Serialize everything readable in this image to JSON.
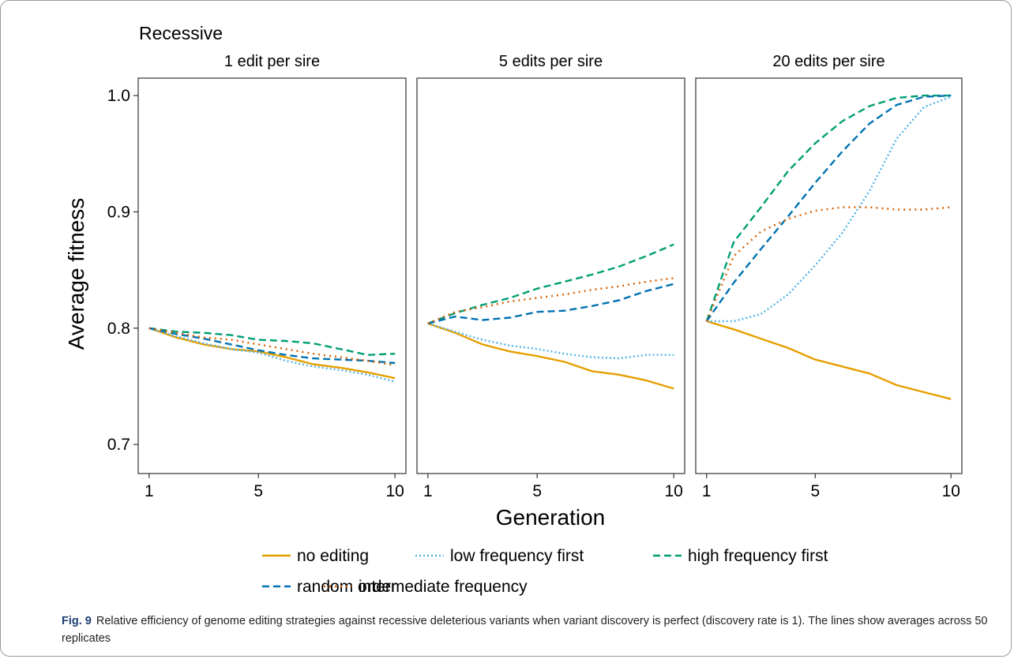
{
  "figure_label": "Fig. 9",
  "caption_text": "Relative efficiency of genome editing strategies against recessive deleterious variants when variant discovery is perfect (discovery rate is 1). The lines show averages across 50 replicates",
  "chart_data": {
    "type": "line",
    "title": "Recessive",
    "xlabel": "Generation",
    "ylabel": "Average fitness",
    "xlim": [
      0.6,
      10.4
    ],
    "ylim": [
      0.675,
      1.015
    ],
    "x_ticks": [
      1,
      5,
      10
    ],
    "y_ticks": [
      0.7,
      0.8,
      0.9,
      1.0
    ],
    "y_tick_labels": [
      "0.7",
      "0.8",
      "0.9",
      "1.0"
    ],
    "grid": false,
    "legend_position": "bottom",
    "colors": {
      "no editing": "#E69F00",
      "low frequency first": "#56B4E9",
      "high frequency first": "#009E73",
      "random order": "#0072B2",
      "intermediate frequency": "#D55E00"
    },
    "legend": [
      "no editing",
      "low frequency first",
      "high frequency first",
      "random order",
      "intermediate frequency"
    ],
    "x": [
      1,
      2,
      3,
      4,
      5,
      6,
      7,
      8,
      9,
      10
    ],
    "panels": [
      {
        "title": "1 edit per sire",
        "series": [
          {
            "name": "no editing",
            "values": [
              0.8,
              0.792,
              0.786,
              0.782,
              0.78,
              0.775,
              0.769,
              0.766,
              0.762,
              0.757
            ]
          },
          {
            "name": "low frequency first",
            "values": [
              0.8,
              0.793,
              0.787,
              0.782,
              0.779,
              0.772,
              0.767,
              0.764,
              0.76,
              0.754
            ]
          },
          {
            "name": "high frequency first",
            "values": [
              0.8,
              0.797,
              0.796,
              0.794,
              0.79,
              0.789,
              0.787,
              0.782,
              0.777,
              0.778
            ]
          },
          {
            "name": "random order",
            "values": [
              0.8,
              0.795,
              0.791,
              0.786,
              0.781,
              0.777,
              0.774,
              0.773,
              0.772,
              0.77
            ]
          },
          {
            "name": "intermediate frequency",
            "values": [
              0.8,
              0.796,
              0.792,
              0.79,
              0.786,
              0.782,
              0.778,
              0.775,
              0.772,
              0.768
            ]
          }
        ]
      },
      {
        "title": "5 edits per sire",
        "series": [
          {
            "name": "no editing",
            "values": [
              0.804,
              0.796,
              0.786,
              0.78,
              0.776,
              0.771,
              0.763,
              0.76,
              0.755,
              0.748
            ]
          },
          {
            "name": "low frequency first",
            "values": [
              0.804,
              0.797,
              0.79,
              0.785,
              0.782,
              0.778,
              0.775,
              0.774,
              0.777,
              0.777
            ]
          },
          {
            "name": "high frequency first",
            "values": [
              0.804,
              0.813,
              0.82,
              0.826,
              0.834,
              0.84,
              0.846,
              0.853,
              0.862,
              0.872
            ]
          },
          {
            "name": "random order",
            "values": [
              0.804,
              0.81,
              0.807,
              0.809,
              0.814,
              0.815,
              0.819,
              0.824,
              0.832,
              0.838
            ]
          },
          {
            "name": "intermediate frequency",
            "values": [
              0.804,
              0.814,
              0.818,
              0.823,
              0.826,
              0.829,
              0.833,
              0.836,
              0.84,
              0.843
            ]
          }
        ]
      },
      {
        "title": "20 edits per sire",
        "series": [
          {
            "name": "no editing",
            "values": [
              0.806,
              0.799,
              0.791,
              0.783,
              0.773,
              0.767,
              0.761,
              0.751,
              0.745,
              0.739
            ]
          },
          {
            "name": "low frequency first",
            "values": [
              0.806,
              0.806,
              0.812,
              0.829,
              0.854,
              0.882,
              0.918,
              0.963,
              0.99,
              0.999
            ]
          },
          {
            "name": "high frequency first",
            "values": [
              0.806,
              0.874,
              0.904,
              0.935,
              0.959,
              0.978,
              0.991,
              0.998,
              1.0,
              1.0
            ]
          },
          {
            "name": "random order",
            "values": [
              0.806,
              0.839,
              0.868,
              0.896,
              0.925,
              0.952,
              0.976,
              0.992,
              0.999,
              1.0
            ]
          },
          {
            "name": "intermediate frequency",
            "values": [
              0.806,
              0.862,
              0.883,
              0.894,
              0.901,
              0.904,
              0.904,
              0.902,
              0.902,
              0.904
            ]
          }
        ]
      }
    ]
  }
}
